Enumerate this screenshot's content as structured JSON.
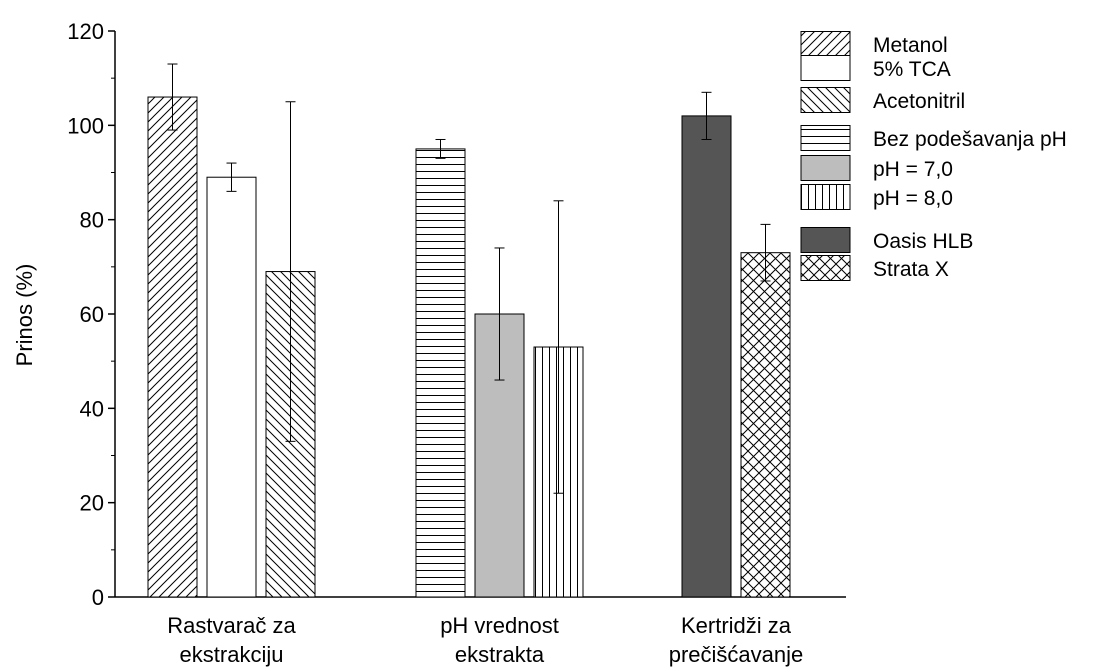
{
  "chart_data": {
    "type": "bar",
    "ylabel": "Prinos (%)",
    "ylim": [
      0,
      120
    ],
    "yticks": [
      0,
      20,
      40,
      60,
      80,
      100,
      120
    ],
    "grid": false,
    "legend_position": "top-right",
    "groups": [
      {
        "label": [
          "Rastvarač za",
          "ekstrakciju"
        ],
        "bars": [
          {
            "name": "Metanol",
            "value": 106,
            "error": 7,
            "pattern": "diag-fwd"
          },
          {
            "name": "5% TCA",
            "value": 89,
            "error": 3,
            "pattern": "none"
          },
          {
            "name": "Acetonitril",
            "value": 69,
            "error": 36,
            "pattern": "diag-back"
          }
        ]
      },
      {
        "label": [
          "pH vrednost",
          "ekstrakta"
        ],
        "bars": [
          {
            "name": "Bez podešavanja pH",
            "value": 95,
            "error": 2,
            "pattern": "horizontal"
          },
          {
            "name": "pH = 7,0",
            "value": 60,
            "error": 14,
            "pattern": "gray"
          },
          {
            "name": "pH = 8,0",
            "value": 53,
            "error": 31,
            "pattern": "vertical"
          }
        ]
      },
      {
        "label": [
          "Kertridži za",
          "prečišćavanje"
        ],
        "bars": [
          {
            "name": "Oasis HLB",
            "value": 102,
            "error": 5,
            "pattern": "dark"
          },
          {
            "name": "Strata X",
            "value": 73,
            "error": 6,
            "pattern": "cross"
          }
        ]
      }
    ],
    "colors": {
      "gray_fill": "#bdbdbd",
      "dark_fill": "#555555",
      "stroke": "#000000"
    }
  }
}
